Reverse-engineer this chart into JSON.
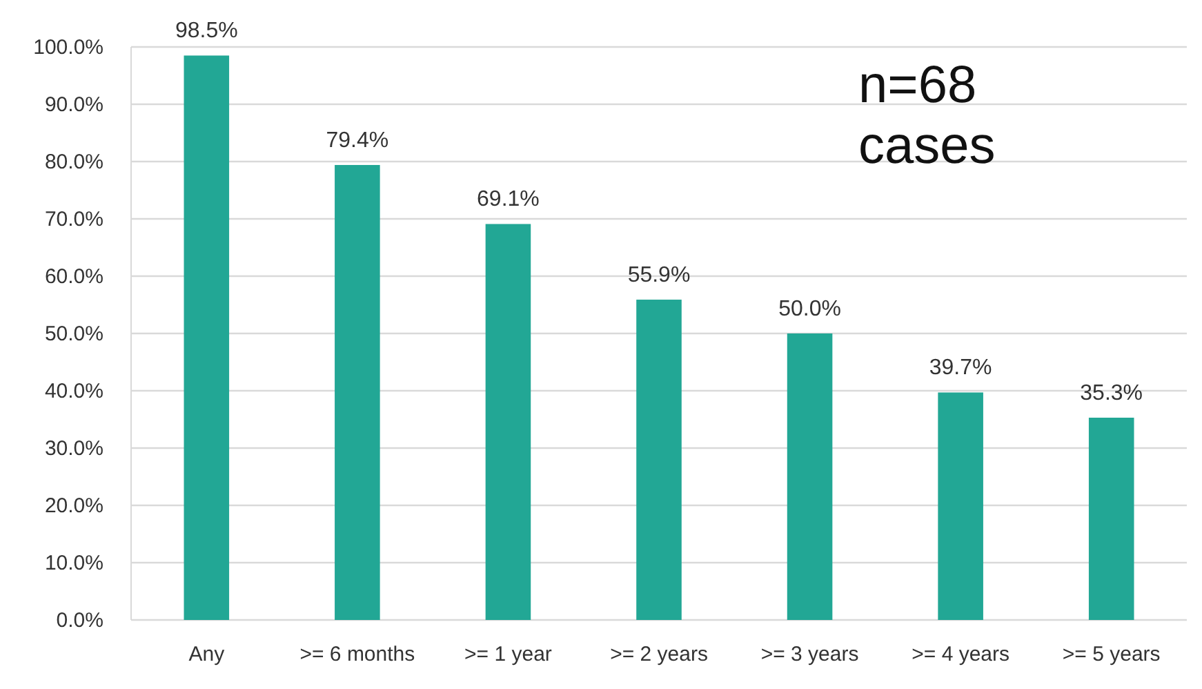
{
  "chart_data": {
    "type": "bar",
    "categories": [
      "Any",
      ">= 6 months",
      ">= 1 year",
      ">= 2 years",
      ">= 3 years",
      ">= 4 years",
      ">= 5 years"
    ],
    "values": [
      98.5,
      79.4,
      69.1,
      55.9,
      50.0,
      39.7,
      35.3
    ],
    "value_labels": [
      "98.5%",
      "79.4%",
      "69.1%",
      "55.9%",
      "50.0%",
      "39.7%",
      "35.3%"
    ],
    "color": "#22a795",
    "ylim": [
      0,
      100
    ],
    "yticks": [
      {
        "value": 0,
        "label": "0.0%"
      },
      {
        "value": 10,
        "label": "10.0%"
      },
      {
        "value": 20,
        "label": "20.0%"
      },
      {
        "value": 30,
        "label": "30.0%"
      },
      {
        "value": 40,
        "label": "40.0%"
      },
      {
        "value": 50,
        "label": "50.0%"
      },
      {
        "value": 60,
        "label": "60.0%"
      },
      {
        "value": 70,
        "label": "70.0%"
      },
      {
        "value": 80,
        "label": "80.0%"
      },
      {
        "value": 90,
        "label": "90.0%"
      },
      {
        "value": 100,
        "label": "100.0%"
      }
    ],
    "grid": "y",
    "annotations": [
      "n=68 cases"
    ]
  }
}
